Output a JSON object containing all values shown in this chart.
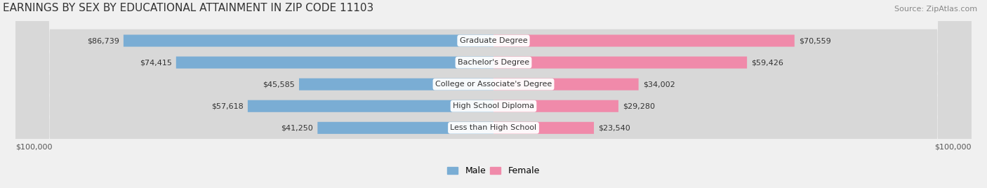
{
  "title": "EARNINGS BY SEX BY EDUCATIONAL ATTAINMENT IN ZIP CODE 11103",
  "source": "Source: ZipAtlas.com",
  "categories": [
    "Less than High School",
    "High School Diploma",
    "College or Associate's Degree",
    "Bachelor's Degree",
    "Graduate Degree"
  ],
  "male_values": [
    41250,
    57618,
    45585,
    74415,
    86739
  ],
  "female_values": [
    23540,
    29280,
    34002,
    59426,
    70559
  ],
  "max_value": 100000,
  "male_color": "#7aadd4",
  "female_color": "#f08aaa",
  "background_color": "#f0f0f0",
  "bar_bg_color": "#e0e0e0",
  "label_bg_color": "#ffffff",
  "male_label": "Male",
  "female_label": "Female",
  "axis_labels": [
    "$100,000",
    "$100,000"
  ],
  "title_fontsize": 11,
  "source_fontsize": 8,
  "bar_label_fontsize": 8,
  "category_fontsize": 8
}
